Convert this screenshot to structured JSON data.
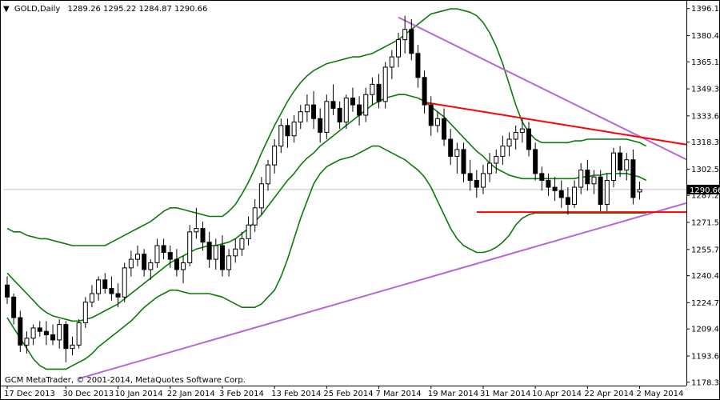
{
  "header": {
    "symbol": "GOLD,Daily",
    "ohlc": "1289.26 1295.22 1284.87 1290.66"
  },
  "footer": {
    "copyright": "GCM MetaTrader, © 2001-2014, MetaQuotes Software Corp."
  },
  "colors": {
    "candle": "#000000",
    "bollinger": "#0a7a0a",
    "trendline": "#b468d8",
    "horizontal": "#ff0000",
    "price_tag_bg": "#000000",
    "price_line": "#c0c0c0"
  },
  "chart_data": {
    "type": "candlestick",
    "symbol": "GOLD",
    "timeframe": "Daily",
    "ylim": [
      1178.25,
      1403.0
    ],
    "y_ticks": [
      "1396.15",
      "1380.40",
      "1365.10",
      "1349.35",
      "1333.60",
      "1318.30",
      "1302.55",
      "1287.25",
      "1271.50",
      "1255.75",
      "1240.45",
      "1224.70",
      "1209.40",
      "1193.65",
      "1178.35"
    ],
    "x_ticks": [
      "17 Dec 2013",
      "30 Dec 2013",
      "10 Jan 2014",
      "22 Jan 2014",
      "3 Feb 2014",
      "13 Feb 2014",
      "25 Feb 2014",
      "7 Mar 2014",
      "19 Mar 2014",
      "31 Mar 2014",
      "10 Apr 2014",
      "22 Apr 2014",
      "2 May 2014"
    ],
    "x_tick_index": [
      0,
      9,
      17,
      25,
      33,
      41,
      49,
      57,
      65,
      73,
      81,
      89,
      97
    ],
    "current_price": "1290.66",
    "candles": [
      [
        1235,
        1240,
        1224,
        1228
      ],
      [
        1228,
        1230,
        1212,
        1216
      ],
      [
        1216,
        1220,
        1196,
        1200
      ],
      [
        1200,
        1208,
        1195,
        1204
      ],
      [
        1204,
        1212,
        1200,
        1210
      ],
      [
        1210,
        1214,
        1205,
        1208
      ],
      [
        1208,
        1214,
        1200,
        1206
      ],
      [
        1206,
        1212,
        1200,
        1203
      ],
      [
        1203,
        1215,
        1198,
        1212
      ],
      [
        1212,
        1214,
        1190,
        1198
      ],
      [
        1198,
        1205,
        1194,
        1200
      ],
      [
        1200,
        1215,
        1198,
        1213
      ],
      [
        1213,
        1228,
        1210,
        1225
      ],
      [
        1225,
        1235,
        1222,
        1230
      ],
      [
        1230,
        1240,
        1226,
        1238
      ],
      [
        1238,
        1242,
        1230,
        1233
      ],
      [
        1233,
        1240,
        1226,
        1230
      ],
      [
        1230,
        1236,
        1222,
        1228
      ],
      [
        1228,
        1248,
        1225,
        1245
      ],
      [
        1245,
        1255,
        1240,
        1250
      ],
      [
        1250,
        1258,
        1246,
        1253
      ],
      [
        1253,
        1256,
        1240,
        1244
      ],
      [
        1244,
        1250,
        1238,
        1248
      ],
      [
        1248,
        1262,
        1245,
        1258
      ],
      [
        1258,
        1262,
        1250,
        1254
      ],
      [
        1254,
        1258,
        1245,
        1250
      ],
      [
        1250,
        1256,
        1240,
        1244
      ],
      [
        1244,
        1252,
        1236,
        1248
      ],
      [
        1248,
        1270,
        1246,
        1266
      ],
      [
        1266,
        1280,
        1262,
        1268
      ],
      [
        1268,
        1272,
        1255,
        1260
      ],
      [
        1260,
        1266,
        1245,
        1250
      ],
      [
        1250,
        1262,
        1244,
        1258
      ],
      [
        1258,
        1264,
        1240,
        1244
      ],
      [
        1244,
        1256,
        1240,
        1252
      ],
      [
        1252,
        1262,
        1248,
        1256
      ],
      [
        1256,
        1266,
        1252,
        1262
      ],
      [
        1262,
        1275,
        1258,
        1270
      ],
      [
        1270,
        1285,
        1266,
        1280
      ],
      [
        1280,
        1298,
        1276,
        1294
      ],
      [
        1294,
        1308,
        1290,
        1305
      ],
      [
        1305,
        1320,
        1300,
        1316
      ],
      [
        1316,
        1332,
        1312,
        1328
      ],
      [
        1328,
        1332,
        1315,
        1322
      ],
      [
        1322,
        1334,
        1318,
        1330
      ],
      [
        1330,
        1340,
        1326,
        1336
      ],
      [
        1336,
        1346,
        1330,
        1340
      ],
      [
        1340,
        1348,
        1326,
        1332
      ],
      [
        1332,
        1338,
        1318,
        1324
      ],
      [
        1324,
        1346,
        1320,
        1342
      ],
      [
        1342,
        1352,
        1334,
        1338
      ],
      [
        1338,
        1342,
        1326,
        1330
      ],
      [
        1330,
        1346,
        1326,
        1344
      ],
      [
        1344,
        1350,
        1336,
        1340
      ],
      [
        1340,
        1345,
        1328,
        1334
      ],
      [
        1334,
        1350,
        1330,
        1346
      ],
      [
        1346,
        1356,
        1340,
        1352
      ],
      [
        1352,
        1358,
        1338,
        1342
      ],
      [
        1342,
        1365,
        1338,
        1362
      ],
      [
        1362,
        1372,
        1355,
        1368
      ],
      [
        1368,
        1382,
        1362,
        1378
      ],
      [
        1378,
        1392,
        1370,
        1384
      ],
      [
        1384,
        1390,
        1366,
        1370
      ],
      [
        1370,
        1375,
        1350,
        1356
      ],
      [
        1356,
        1360,
        1335,
        1340
      ],
      [
        1340,
        1345,
        1322,
        1328
      ],
      [
        1328,
        1336,
        1324,
        1332
      ],
      [
        1332,
        1338,
        1316,
        1320
      ],
      [
        1320,
        1326,
        1305,
        1310
      ],
      [
        1310,
        1318,
        1300,
        1314
      ],
      [
        1314,
        1318,
        1295,
        1300
      ],
      [
        1300,
        1308,
        1290,
        1296
      ],
      [
        1296,
        1302,
        1286,
        1292
      ],
      [
        1292,
        1305,
        1288,
        1300
      ],
      [
        1300,
        1312,
        1295,
        1306
      ],
      [
        1306,
        1314,
        1300,
        1310
      ],
      [
        1310,
        1322,
        1305,
        1316
      ],
      [
        1316,
        1324,
        1310,
        1320
      ],
      [
        1320,
        1328,
        1314,
        1324
      ],
      [
        1324,
        1332,
        1318,
        1326
      ],
      [
        1326,
        1330,
        1310,
        1314
      ],
      [
        1314,
        1318,
        1296,
        1300
      ],
      [
        1300,
        1304,
        1290,
        1296
      ],
      [
        1296,
        1300,
        1287,
        1292
      ],
      [
        1292,
        1298,
        1284,
        1290
      ],
      [
        1290,
        1296,
        1280,
        1286
      ],
      [
        1286,
        1292,
        1276,
        1282
      ],
      [
        1282,
        1296,
        1280,
        1292
      ],
      [
        1292,
        1306,
        1288,
        1302
      ],
      [
        1302,
        1308,
        1290,
        1294
      ],
      [
        1294,
        1302,
        1288,
        1298
      ],
      [
        1298,
        1302,
        1278,
        1282
      ],
      [
        1282,
        1300,
        1278,
        1296
      ],
      [
        1296,
        1315,
        1292,
        1312
      ],
      [
        1312,
        1316,
        1298,
        1302
      ],
      [
        1302,
        1312,
        1296,
        1308
      ],
      [
        1308,
        1314,
        1282,
        1286
      ],
      [
        1289.26,
        1295.22,
        1284.87,
        1290.66
      ]
    ],
    "bollinger": {
      "middle": [
        1242,
        1238,
        1234,
        1230,
        1226,
        1222,
        1219,
        1217,
        1216,
        1215,
        1214,
        1214,
        1215,
        1216,
        1218,
        1220,
        1222,
        1224,
        1227,
        1230,
        1233,
        1236,
        1239,
        1242,
        1245,
        1248,
        1250,
        1252,
        1254,
        1256,
        1257,
        1258,
        1258,
        1259,
        1260,
        1262,
        1265,
        1268,
        1272,
        1276,
        1281,
        1286,
        1291,
        1296,
        1300,
        1305,
        1309,
        1312,
        1316,
        1319,
        1322,
        1325,
        1328,
        1331,
        1334,
        1337,
        1340,
        1342,
        1344,
        1345,
        1346,
        1346,
        1345,
        1344,
        1342,
        1339,
        1336,
        1333,
        1329,
        1325,
        1321,
        1317,
        1313,
        1310,
        1306,
        1303,
        1301,
        1299,
        1298,
        1297,
        1297,
        1297,
        1297,
        1297,
        1297,
        1297,
        1297,
        1297,
        1298,
        1298,
        1299,
        1299,
        1300,
        1300,
        1300,
        1300,
        1299,
        1298,
        1296
      ],
      "upper": [
        1268,
        1266,
        1266,
        1264,
        1263,
        1262,
        1262,
        1261,
        1260,
        1259,
        1258,
        1258,
        1258,
        1258,
        1258,
        1258,
        1260,
        1262,
        1264,
        1266,
        1268,
        1270,
        1272,
        1275,
        1278,
        1280,
        1280,
        1279,
        1278,
        1277,
        1276,
        1275,
        1275,
        1275,
        1278,
        1282,
        1288,
        1295,
        1303,
        1312,
        1320,
        1328,
        1335,
        1342,
        1348,
        1353,
        1357,
        1360,
        1362,
        1364,
        1365,
        1366,
        1367,
        1368,
        1368,
        1369,
        1370,
        1372,
        1374,
        1376,
        1378,
        1381,
        1384,
        1387,
        1390,
        1393,
        1394,
        1395,
        1396,
        1396,
        1395,
        1394,
        1392,
        1388,
        1382,
        1374,
        1364,
        1352,
        1340,
        1330,
        1324,
        1320,
        1318,
        1318,
        1318,
        1318,
        1318,
        1319,
        1319,
        1320,
        1320,
        1320,
        1320,
        1320,
        1320,
        1320,
        1319,
        1318,
        1316
      ],
      "lower": [
        1216,
        1210,
        1204,
        1198,
        1192,
        1188,
        1186,
        1186,
        1186,
        1186,
        1188,
        1190,
        1192,
        1195,
        1199,
        1202,
        1205,
        1208,
        1211,
        1214,
        1218,
        1222,
        1225,
        1228,
        1230,
        1232,
        1232,
        1231,
        1230,
        1230,
        1230,
        1230,
        1229,
        1228,
        1226,
        1224,
        1222,
        1222,
        1222,
        1224,
        1228,
        1232,
        1240,
        1250,
        1262,
        1274,
        1284,
        1294,
        1300,
        1304,
        1306,
        1308,
        1309,
        1310,
        1312,
        1314,
        1316,
        1316,
        1314,
        1312,
        1310,
        1308,
        1305,
        1302,
        1298,
        1292,
        1284,
        1276,
        1268,
        1262,
        1258,
        1256,
        1254,
        1254,
        1255,
        1257,
        1260,
        1264,
        1270,
        1274,
        1276,
        1277,
        1277,
        1277,
        1277,
        1277,
        1277,
        1277,
        1277,
        1277,
        1277,
        1277,
        1277,
        1277,
        1277,
        1277,
        1277,
        1277,
        1277
      ]
    },
    "lines": [
      {
        "kind": "trendline",
        "from": [
          11,
          1180.5
        ],
        "to": [
          108,
          1287.0
        ]
      },
      {
        "kind": "trendline",
        "from": [
          60,
          1391.0
        ],
        "to": [
          108,
          1301.0
        ]
      },
      {
        "kind": "resistance",
        "from": [
          64,
          1341.5
        ],
        "to": [
          108,
          1314.5
        ]
      },
      {
        "kind": "support",
        "from": [
          72,
          1277.5
        ],
        "to": [
          108,
          1277.5
        ]
      }
    ]
  }
}
